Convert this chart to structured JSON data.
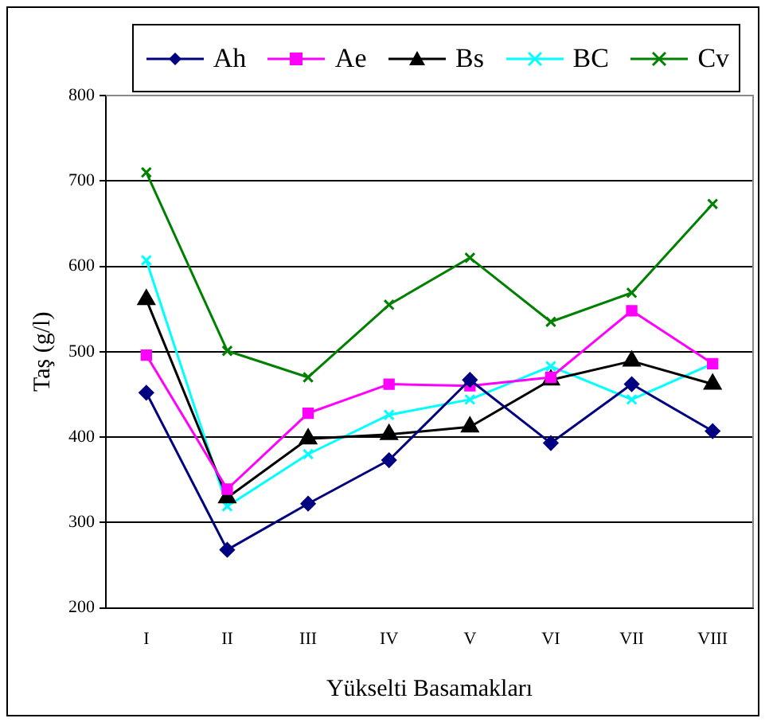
{
  "chart_data": {
    "type": "line",
    "xlabel": "Yükselti Basamakları",
    "ylabel": "Taş (g/l)",
    "categories": [
      "I",
      "II",
      "III",
      "IV",
      "V",
      "VI",
      "VII",
      "VIII"
    ],
    "series": [
      {
        "name": "Ah",
        "color": "#000080",
        "marker": "diamond",
        "values": [
          452,
          268,
          322,
          373,
          467,
          393,
          462,
          407
        ]
      },
      {
        "name": "Ae",
        "color": "#ff00ff",
        "marker": "square",
        "values": [
          496,
          339,
          428,
          462,
          460,
          470,
          548,
          486
        ]
      },
      {
        "name": "Bs",
        "color": "#000000",
        "marker": "triangle",
        "values": [
          561,
          329,
          398,
          403,
          412,
          467,
          489,
          462
        ]
      },
      {
        "name": "BC",
        "color": "#00ffff",
        "marker": "cross",
        "values": [
          607,
          319,
          380,
          426,
          444,
          483,
          444,
          486
        ]
      },
      {
        "name": "Cv",
        "color": "#008000",
        "marker": "cross",
        "values": [
          710,
          501,
          470,
          555,
          610,
          535,
          569,
          673
        ]
      }
    ],
    "ylim": [
      200,
      800
    ],
    "yticks": [
      200,
      300,
      400,
      500,
      600,
      700,
      800
    ],
    "grid": "y",
    "legend": "top"
  }
}
